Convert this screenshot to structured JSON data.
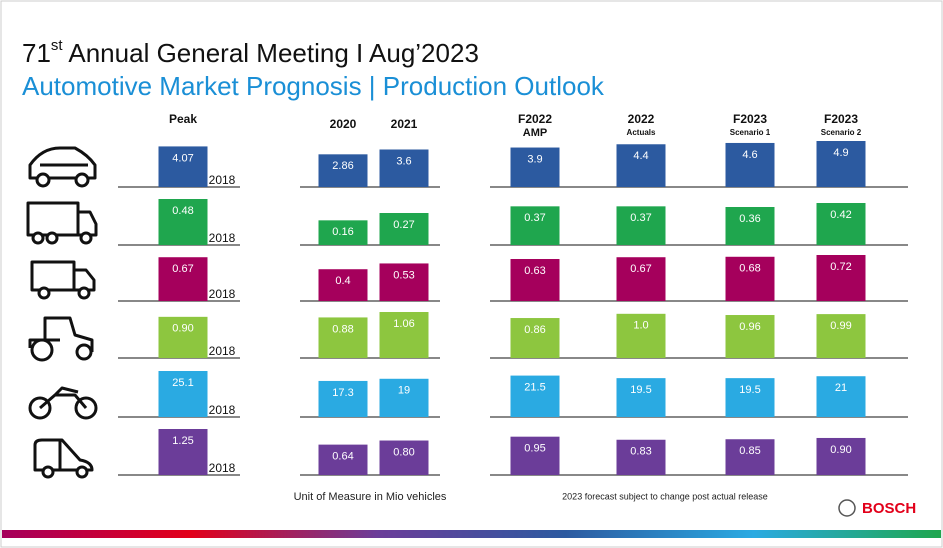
{
  "header": {
    "title_main": "71",
    "title_sup": "st",
    "title_rest": " Annual General Meeting I Aug’2023",
    "subtitle": "Automotive Market Prognosis | Production Outlook"
  },
  "columns": [
    [
      "Peak"
    ],
    [
      "2020"
    ],
    [
      "2021"
    ],
    [
      "F2022",
      "AMP"
    ],
    [
      "2022",
      "Actuals"
    ],
    [
      "F2023",
      "Scenario 1"
    ],
    [
      "F2023",
      "Scenario 2"
    ]
  ],
  "rows": [
    {
      "color": "#2c5aa0",
      "peak_year": "2018",
      "values": [
        "4.07",
        "2.86",
        "3.6",
        "3.9",
        "4.4",
        "4.6",
        "4.9"
      ]
    },
    {
      "color": "#1fa64e",
      "peak_year": "2018",
      "values": [
        "0.48",
        "0.16",
        "0.27",
        "0.37",
        "0.37",
        "0.36",
        "0.42"
      ]
    },
    {
      "color": "#a5005c",
      "peak_year": "2018",
      "values": [
        "0.67",
        "0.4",
        "0.53",
        "0.63",
        "0.67",
        "0.68",
        "0.72"
      ]
    },
    {
      "color": "#8dc63f",
      "peak_year": "2018",
      "values": [
        "0.90",
        "0.88",
        "1.06",
        "0.86",
        "1.0",
        "0.96",
        "0.99"
      ]
    },
    {
      "color": "#2aaae2",
      "peak_year": "2018",
      "values": [
        "25.1",
        "17.3",
        "19",
        "21.5",
        "19.5",
        "19.5",
        "21"
      ]
    },
    {
      "color": "#6b3d99",
      "peak_year": "2018",
      "values": [
        "1.25",
        "0.64",
        "0.80",
        "0.95",
        "0.83",
        "0.85",
        "0.90"
      ]
    }
  ],
  "footer": {
    "unit_note": "Unit of Measure in Mio vehicles",
    "forecast_note": "2023 forecast subject to change post actual release",
    "brand": "BOSCH"
  }
}
